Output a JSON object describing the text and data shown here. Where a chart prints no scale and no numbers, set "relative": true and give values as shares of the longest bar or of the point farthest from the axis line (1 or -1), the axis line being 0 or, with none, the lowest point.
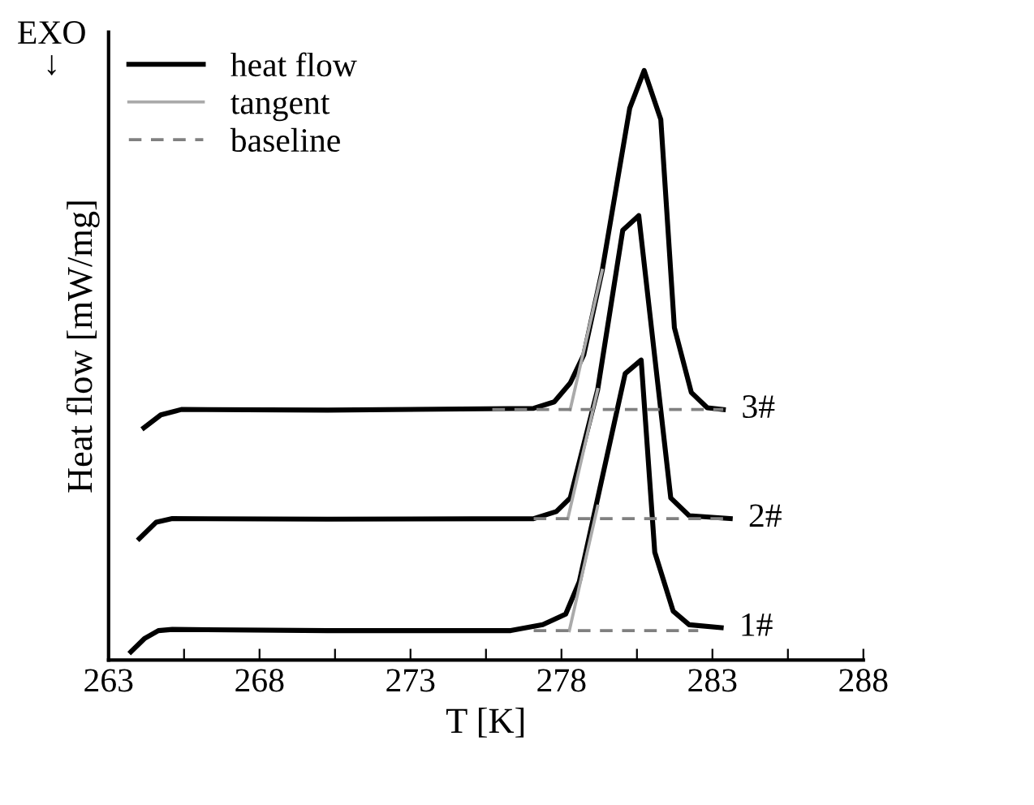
{
  "chart_data": {
    "type": "line",
    "relative": true,
    "xlabel": "T [K]",
    "ylabel": "Heat flow [mW/mg]",
    "xlim": [
      263,
      288
    ],
    "xticks": [
      263,
      {
        "value": 265.5,
        "label": null
      },
      268,
      {
        "value": 270.5,
        "label": null
      },
      273,
      {
        "value": 275.5,
        "label": null
      },
      278,
      {
        "value": 280.5,
        "label": null
      },
      283,
      {
        "value": 285.5,
        "label": null
      },
      288
    ],
    "legend": "top left",
    "grid": false,
    "marker": "none",
    "series": [
      {
        "name": "heat flow",
        "color": "#000000",
        "line_style": "solid",
        "x": [
          263.74,
          264.2,
          264.65,
          265.11,
          270.26,
          276.32,
          277.38,
          278.14,
          278.59,
          280.11,
          280.64,
          281.09,
          281.7,
          282.23,
          283.29
        ],
        "values": [
          0.014,
          0.037,
          0.05,
          0.052,
          0.05,
          0.05,
          0.06,
          0.078,
          0.133,
          0.486,
          0.509,
          0.183,
          0.083,
          0.06,
          0.055
        ]
      },
      {
        "color": "#000000",
        "line_style": "solid",
        "x": [
          264.02,
          264.58,
          265.11,
          270.26,
          277.08,
          277.83,
          278.29,
          279.2,
          280.03,
          280.56,
          281.09,
          281.62,
          282.23,
          283.59
        ],
        "values": [
          0.206,
          0.234,
          0.24,
          0.239,
          0.24,
          0.252,
          0.275,
          0.459,
          0.729,
          0.754,
          0.514,
          0.275,
          0.245,
          0.24
        ]
      },
      {
        "color": "#000000",
        "line_style": "solid",
        "x": [
          264.17,
          264.73,
          265.41,
          270.26,
          277.08,
          277.76,
          278.29,
          278.74,
          279.35,
          280.26,
          280.74,
          281.29,
          281.74,
          282.3,
          282.83,
          283.36
        ],
        "values": [
          0.394,
          0.416,
          0.425,
          0.424,
          0.427,
          0.438,
          0.47,
          0.518,
          0.661,
          0.936,
          1,
          0.917,
          0.564,
          0.454,
          0.428,
          0.425
        ]
      },
      {
        "name": "tangent",
        "color": "#aaaaaa",
        "line_style": "solid",
        "x": [
          278.26,
          279.2
        ],
        "values": [
          0.05,
          0.261
        ]
      },
      {
        "color": "#aaaaaa",
        "line_style": "solid",
        "x": [
          278.21,
          279.2
        ],
        "values": [
          0.24,
          0.459
        ]
      },
      {
        "color": "#aaaaaa",
        "line_style": "solid",
        "x": [
          278.29,
          279.35
        ],
        "values": [
          0.425,
          0.661
        ]
      },
      {
        "name": "baseline",
        "color": "#808080",
        "line_style": "dashed",
        "x": [
          277.08,
          282.53
        ],
        "values": [
          0.05,
          0.05
        ]
      },
      {
        "color": "#808080",
        "line_style": "dashed",
        "x": [
          277.08,
          283.59
        ],
        "values": [
          0.24,
          0.24
        ]
      },
      {
        "color": "#808080",
        "line_style": "dashed",
        "x": [
          275.71,
          283.36
        ],
        "values": [
          0.425,
          0.425
        ]
      }
    ],
    "annotations": [
      "1#",
      "2#",
      "3#",
      "EXO\n↓"
    ]
  }
}
